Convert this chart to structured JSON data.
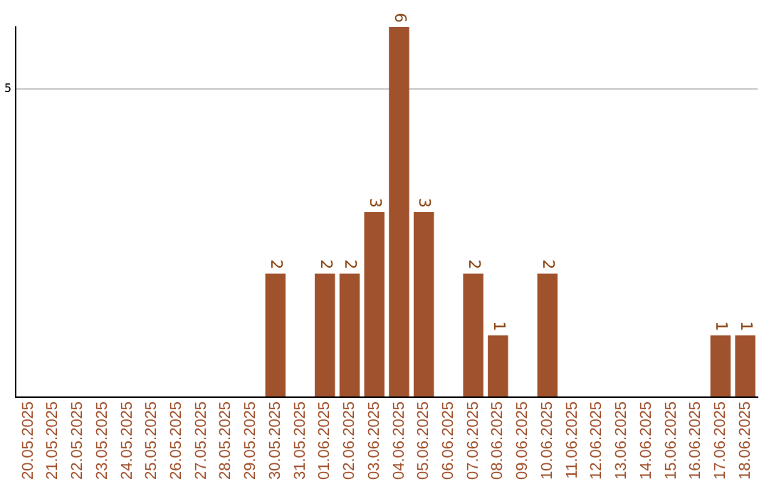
{
  "chart_data": {
    "type": "bar",
    "categories": [
      "20.05.2025",
      "21.05.2025",
      "22.05.2025",
      "23.05.2025",
      "24.05.2025",
      "25.05.2025",
      "26.05.2025",
      "27.05.2025",
      "28.05.2025",
      "29.05.2025",
      "30.05.2025",
      "31.05.2025",
      "01.06.2025",
      "02.06.2025",
      "03.06.2025",
      "04.06.2025",
      "05.06.2025",
      "06.06.2025",
      "07.06.2025",
      "08.06.2025",
      "09.06.2025",
      "10.06.2025",
      "11.06.2025",
      "12.06.2025",
      "13.06.2025",
      "14.06.2025",
      "15.06.2025",
      "16.06.2025",
      "17.06.2025",
      "18.06.2025"
    ],
    "values": [
      0,
      0,
      0,
      0,
      0,
      0,
      0,
      0,
      0,
      0,
      2,
      0,
      2,
      2,
      3,
      6,
      3,
      0,
      2,
      1,
      0,
      2,
      0,
      0,
      0,
      0,
      0,
      0,
      1,
      1
    ],
    "value_labels": [
      null,
      null,
      null,
      null,
      null,
      null,
      null,
      null,
      null,
      null,
      "2",
      null,
      "2",
      "2",
      "3",
      "6",
      "3",
      null,
      "2",
      "1",
      null,
      "2",
      null,
      null,
      null,
      null,
      null,
      null,
      "1",
      "1"
    ],
    "color": "#a0522d",
    "ylim": [
      0,
      6
    ],
    "yticks": [
      {
        "value": 0,
        "label": null
      },
      5
    ],
    "grid": "y",
    "legend": false
  }
}
